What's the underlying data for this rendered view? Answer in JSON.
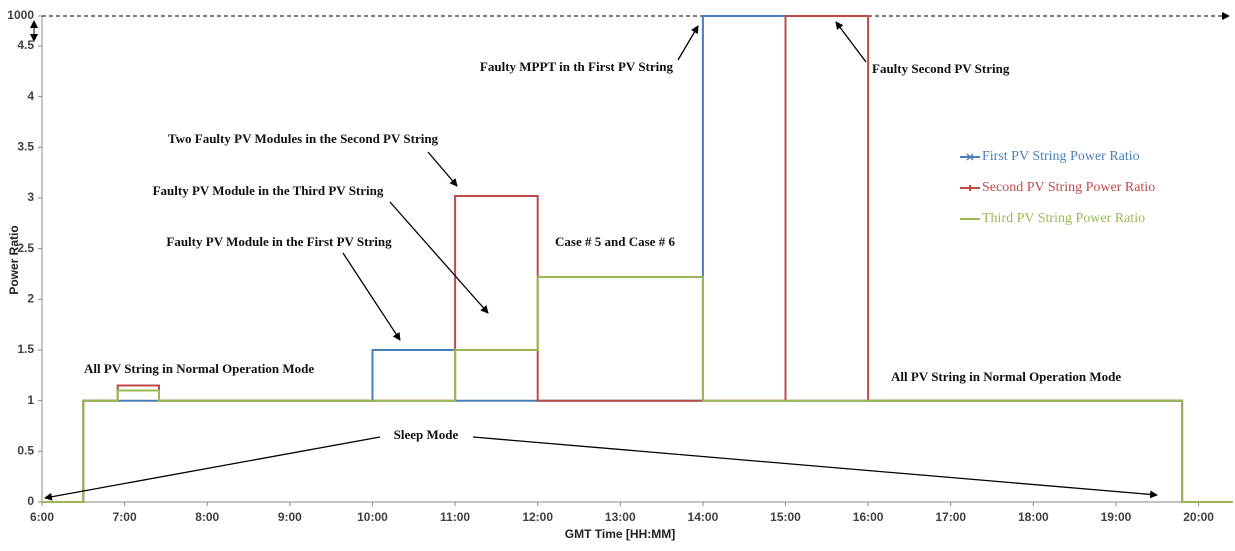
{
  "chart_data": {
    "type": "line",
    "y_label": "Power Ratio",
    "x_label": "GMT Time [HH:MM]",
    "x": [
      "6:00",
      "6:30",
      "6:30",
      "6:55",
      "6:55",
      "7:25",
      "7:25",
      "10:00",
      "10:00",
      "11:00",
      "11:00",
      "12:00",
      "12:00",
      "14:00",
      "14:00",
      "15:00",
      "15:00",
      "16:00",
      "16:00",
      "19:48",
      "19:48",
      "20:25"
    ],
    "series": [
      {
        "name": "First PV String Power Ratio",
        "color": "#4a7ebb",
        "marker": "x",
        "values": [
          0,
          0,
          1,
          1,
          1,
          1,
          1,
          1,
          1.5,
          1.5,
          1,
          1,
          1,
          1,
          1000,
          1000,
          1,
          1,
          1,
          1,
          0,
          0
        ]
      },
      {
        "name": "Second PV String Power Ratio",
        "color": "#be4b48",
        "marker": "dash",
        "values": [
          0,
          0,
          1,
          1,
          1.15,
          1.15,
          1,
          1,
          1,
          1,
          3.02,
          3.02,
          1,
          1,
          1,
          1,
          1000,
          1000,
          1,
          1,
          0,
          0
        ]
      },
      {
        "name": "Third PV String Power Ratio",
        "color": "#98b954",
        "marker": "none",
        "values": [
          0,
          0,
          1,
          1,
          1.1,
          1.1,
          1,
          1,
          1,
          1,
          1.5,
          1.5,
          2.22,
          2.22,
          1,
          1,
          1,
          1,
          1,
          1,
          0,
          0
        ]
      }
    ],
    "xlim": [
      "6:00",
      "20:25"
    ],
    "xticks": [
      "6:00",
      "7:00",
      "8:00",
      "9:00",
      "10:00",
      "11:00",
      "12:00",
      "13:00",
      "14:00",
      "15:00",
      "16:00",
      "17:00",
      "18:00",
      "19:00",
      "20:00"
    ],
    "ylim": [
      0,
      1000
    ],
    "yticks": [
      0,
      0.5,
      1,
      1.5,
      2,
      2.5,
      3,
      3.5,
      4,
      4.5,
      1000
    ],
    "axis_break": true,
    "legend": "right",
    "annotations": [
      "Faulty MPPT in th First PV String",
      "Faulty Second PV String",
      "Two Faulty PV Modules in the Second PV String",
      "Faulty PV Module in the Third PV String",
      "Faulty PV Module in the First PV String",
      "Case # 5 and Case # 6",
      "All PV String in Normal Operation Mode",
      "All PV String in Normal Operation Mode",
      "Sleep Mode"
    ]
  }
}
